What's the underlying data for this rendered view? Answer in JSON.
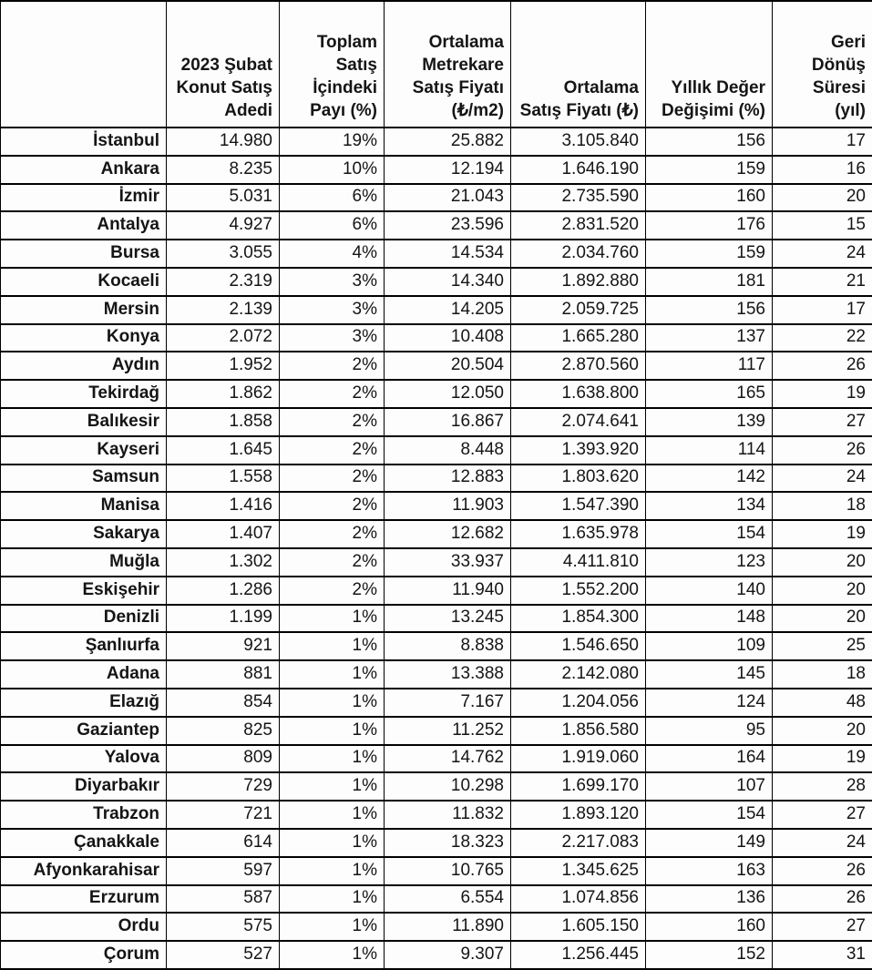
{
  "chart_data": {
    "type": "table",
    "title": "",
    "columns": [
      "",
      "2023 Şubat\nKonut Satış\nAdedi",
      "Toplam\nSatış\nİçindeki\nPayı (%)",
      "Ortalama\nMetrekare\nSatış Fiyatı\n(₺/m2)",
      "Ortalama\nSatış Fiyatı (₺)",
      "Yıllık Değer\nDeğişimi (%)",
      "Geri\nDönüş\nSüresi\n(yıl)"
    ],
    "rows": [
      [
        "İstanbul",
        "14.980",
        "19%",
        "25.882",
        "3.105.840",
        "156",
        "17"
      ],
      [
        "Ankara",
        "8.235",
        "10%",
        "12.194",
        "1.646.190",
        "159",
        "16"
      ],
      [
        "İzmir",
        "5.031",
        "6%",
        "21.043",
        "2.735.590",
        "160",
        "20"
      ],
      [
        "Antalya",
        "4.927",
        "6%",
        "23.596",
        "2.831.520",
        "176",
        "15"
      ],
      [
        "Bursa",
        "3.055",
        "4%",
        "14.534",
        "2.034.760",
        "159",
        "24"
      ],
      [
        "Kocaeli",
        "2.319",
        "3%",
        "14.340",
        "1.892.880",
        "181",
        "21"
      ],
      [
        "Mersin",
        "2.139",
        "3%",
        "14.205",
        "2.059.725",
        "156",
        "17"
      ],
      [
        "Konya",
        "2.072",
        "3%",
        "10.408",
        "1.665.280",
        "137",
        "22"
      ],
      [
        "Aydın",
        "1.952",
        "2%",
        "20.504",
        "2.870.560",
        "117",
        "26"
      ],
      [
        "Tekirdağ",
        "1.862",
        "2%",
        "12.050",
        "1.638.800",
        "165",
        "19"
      ],
      [
        "Balıkesir",
        "1.858",
        "2%",
        "16.867",
        "2.074.641",
        "139",
        "27"
      ],
      [
        "Kayseri",
        "1.645",
        "2%",
        "8.448",
        "1.393.920",
        "114",
        "26"
      ],
      [
        "Samsun",
        "1.558",
        "2%",
        "12.883",
        "1.803.620",
        "142",
        "24"
      ],
      [
        "Manisa",
        "1.416",
        "2%",
        "11.903",
        "1.547.390",
        "134",
        "18"
      ],
      [
        "Sakarya",
        "1.407",
        "2%",
        "12.682",
        "1.635.978",
        "154",
        "19"
      ],
      [
        "Muğla",
        "1.302",
        "2%",
        "33.937",
        "4.411.810",
        "123",
        "20"
      ],
      [
        "Eskişehir",
        "1.286",
        "2%",
        "11.940",
        "1.552.200",
        "140",
        "20"
      ],
      [
        "Denizli",
        "1.199",
        "1%",
        "13.245",
        "1.854.300",
        "148",
        "20"
      ],
      [
        "Şanlıurfa",
        "921",
        "1%",
        "8.838",
        "1.546.650",
        "109",
        "25"
      ],
      [
        "Adana",
        "881",
        "1%",
        "13.388",
        "2.142.080",
        "145",
        "18"
      ],
      [
        "Elazığ",
        "854",
        "1%",
        "7.167",
        "1.204.056",
        "124",
        "48"
      ],
      [
        "Gaziantep",
        "825",
        "1%",
        "11.252",
        "1.856.580",
        "95",
        "20"
      ],
      [
        "Yalova",
        "809",
        "1%",
        "14.762",
        "1.919.060",
        "164",
        "19"
      ],
      [
        "Diyarbakır",
        "729",
        "1%",
        "10.298",
        "1.699.170",
        "107",
        "28"
      ],
      [
        "Trabzon",
        "721",
        "1%",
        "11.832",
        "1.893.120",
        "154",
        "27"
      ],
      [
        "Çanakkale",
        "614",
        "1%",
        "18.323",
        "2.217.083",
        "149",
        "24"
      ],
      [
        "Afyonkarahisar",
        "597",
        "1%",
        "10.765",
        "1.345.625",
        "163",
        "26"
      ],
      [
        "Erzurum",
        "587",
        "1%",
        "6.554",
        "1.074.856",
        "136",
        "26"
      ],
      [
        "Ordu",
        "575",
        "1%",
        "11.890",
        "1.605.150",
        "160",
        "27"
      ],
      [
        "Çorum",
        "527",
        "1%",
        "9.307",
        "1.256.445",
        "152",
        "31"
      ]
    ],
    "layout": {
      "header_align": "right",
      "cell_align": "right",
      "grid": true,
      "border_color": "#000000"
    }
  }
}
